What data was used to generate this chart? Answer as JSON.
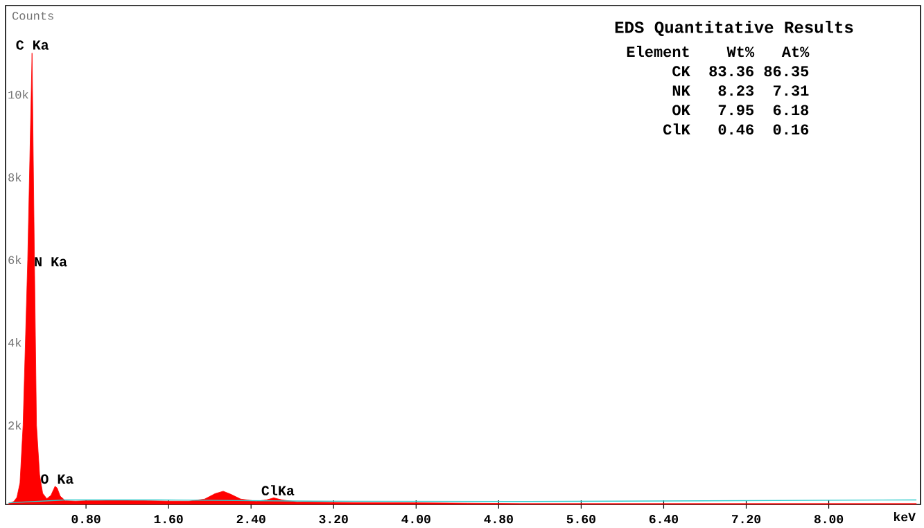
{
  "chart_data": {
    "type": "area",
    "ylabel": "Counts",
    "xlabel": "keV",
    "xlim": [
      0.02,
      8.89
    ],
    "ylim": [
      80,
      12150
    ],
    "xticks": [
      {
        "value": 0.8,
        "label": "0.80"
      },
      {
        "value": 1.6,
        "label": "1.60"
      },
      {
        "value": 2.4,
        "label": "2.40"
      },
      {
        "value": 3.2,
        "label": "3.20"
      },
      {
        "value": 4.0,
        "label": "4.00"
      },
      {
        "value": 4.8,
        "label": "4.80"
      },
      {
        "value": 5.6,
        "label": "5.60"
      },
      {
        "value": 6.4,
        "label": "6.40"
      },
      {
        "value": 7.2,
        "label": "7.20"
      },
      {
        "value": 8.0,
        "label": "8.00"
      }
    ],
    "yticks": [
      {
        "value": 2000,
        "label": "2k"
      },
      {
        "value": 4000,
        "label": "4k"
      },
      {
        "value": 6000,
        "label": "6k"
      },
      {
        "value": 8000,
        "label": "8k"
      },
      {
        "value": 10000,
        "label": "10k"
      }
    ],
    "marker": "none",
    "series": [
      {
        "color": "#ff0000",
        "x": [
          0.05,
          0.1,
          0.13,
          0.16,
          0.19,
          0.235,
          0.277,
          0.3,
          0.32,
          0.35,
          0.38,
          0.42,
          0.46,
          0.5,
          0.52,
          0.55,
          0.6,
          0.7,
          0.8,
          1.0,
          1.2,
          1.4,
          1.6,
          1.8,
          1.95,
          2.05,
          2.13,
          2.2,
          2.3,
          2.45,
          2.55,
          2.62,
          2.7,
          2.85,
          3.2,
          4.0,
          4.5,
          5.0,
          6.0,
          7.0,
          8.0,
          8.85
        ],
        "values": [
          100,
          150,
          250,
          600,
          2000,
          6000,
          11000,
          6000,
          2000,
          800,
          350,
          220,
          300,
          520,
          480,
          280,
          170,
          160,
          170,
          180,
          180,
          170,
          160,
          160,
          210,
          340,
          400,
          330,
          210,
          160,
          190,
          240,
          190,
          140,
          130,
          120,
          110,
          100,
          100,
          100,
          100,
          100
        ]
      },
      {
        "type": "line",
        "color": "#33cccc",
        "x": [
          0.05,
          0.6,
          1.5,
          3.0,
          5.0,
          8.85
        ],
        "values": [
          120,
          190,
          190,
          160,
          150,
          190
        ]
      }
    ],
    "annotations": [
      {
        "text": "C Ka",
        "x": 0.28,
        "y": 11040
      },
      {
        "text": "N Ka",
        "x": 0.28,
        "y": 5950
      },
      {
        "text": "O Ka",
        "x": 0.52,
        "y": 540
      },
      {
        "text": "ClKa",
        "x": 2.66,
        "y": 260
      },
      "EDS Quantitative Results",
      "Element",
      "Wt%",
      "At%",
      "CK",
      "83.36",
      "86.35",
      "NK",
      "8.23",
      "7.31",
      "OK",
      "7.95",
      "6.18",
      "ClK",
      "0.46",
      "0.16"
    ]
  }
}
